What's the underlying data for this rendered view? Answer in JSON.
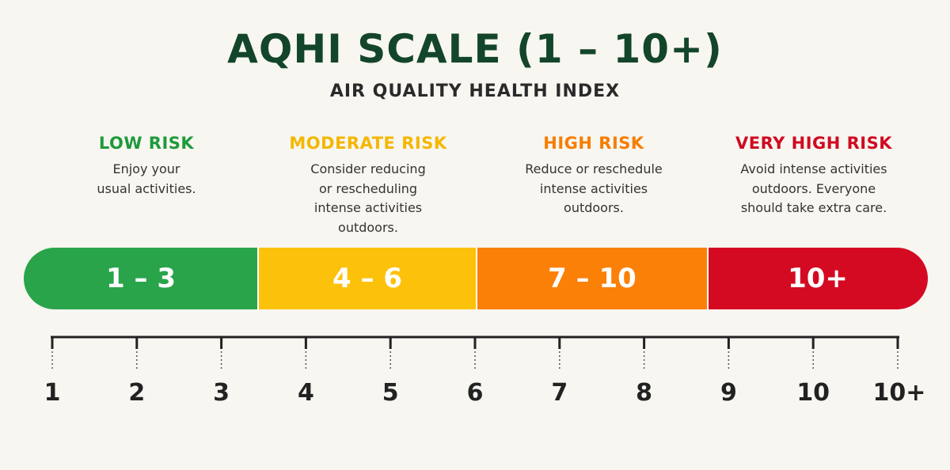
{
  "title": "AQHI SCALE (1 – 10+)",
  "subtitle": "AIR QUALITY HEALTH INDEX",
  "categories": [
    {
      "label": "LOW RISK",
      "color": "#1e9a3c",
      "desc": [
        "Enjoy your",
        "usual activities."
      ],
      "range": "1 – 3"
    },
    {
      "label": "MODERATE RISK",
      "color": "#f4b700",
      "desc": [
        "Consider reducing",
        "or rescheduling",
        "intense activities",
        "outdoors."
      ],
      "range": "4 – 6"
    },
    {
      "label": "HIGH RISK",
      "color": "#f77d00",
      "desc": [
        "Reduce or reschedule",
        "intense activities",
        "outdoors."
      ],
      "range": "7 – 10"
    },
    {
      "label": "VERY HIGH RISK",
      "color": "#cf0a21",
      "desc": [
        "Avoid intense activities",
        "outdoors. Everyone",
        "should take extra care."
      ],
      "range": "10+"
    }
  ],
  "segment_colors": {
    "low": "#2aa44b",
    "moderate": "#fcc10b",
    "high": "#fb8008",
    "very_high": "#d40a22"
  },
  "scale_ticks": [
    "1",
    "2",
    "3",
    "4",
    "5",
    "6",
    "7",
    "8",
    "9",
    "10",
    "10+"
  ]
}
